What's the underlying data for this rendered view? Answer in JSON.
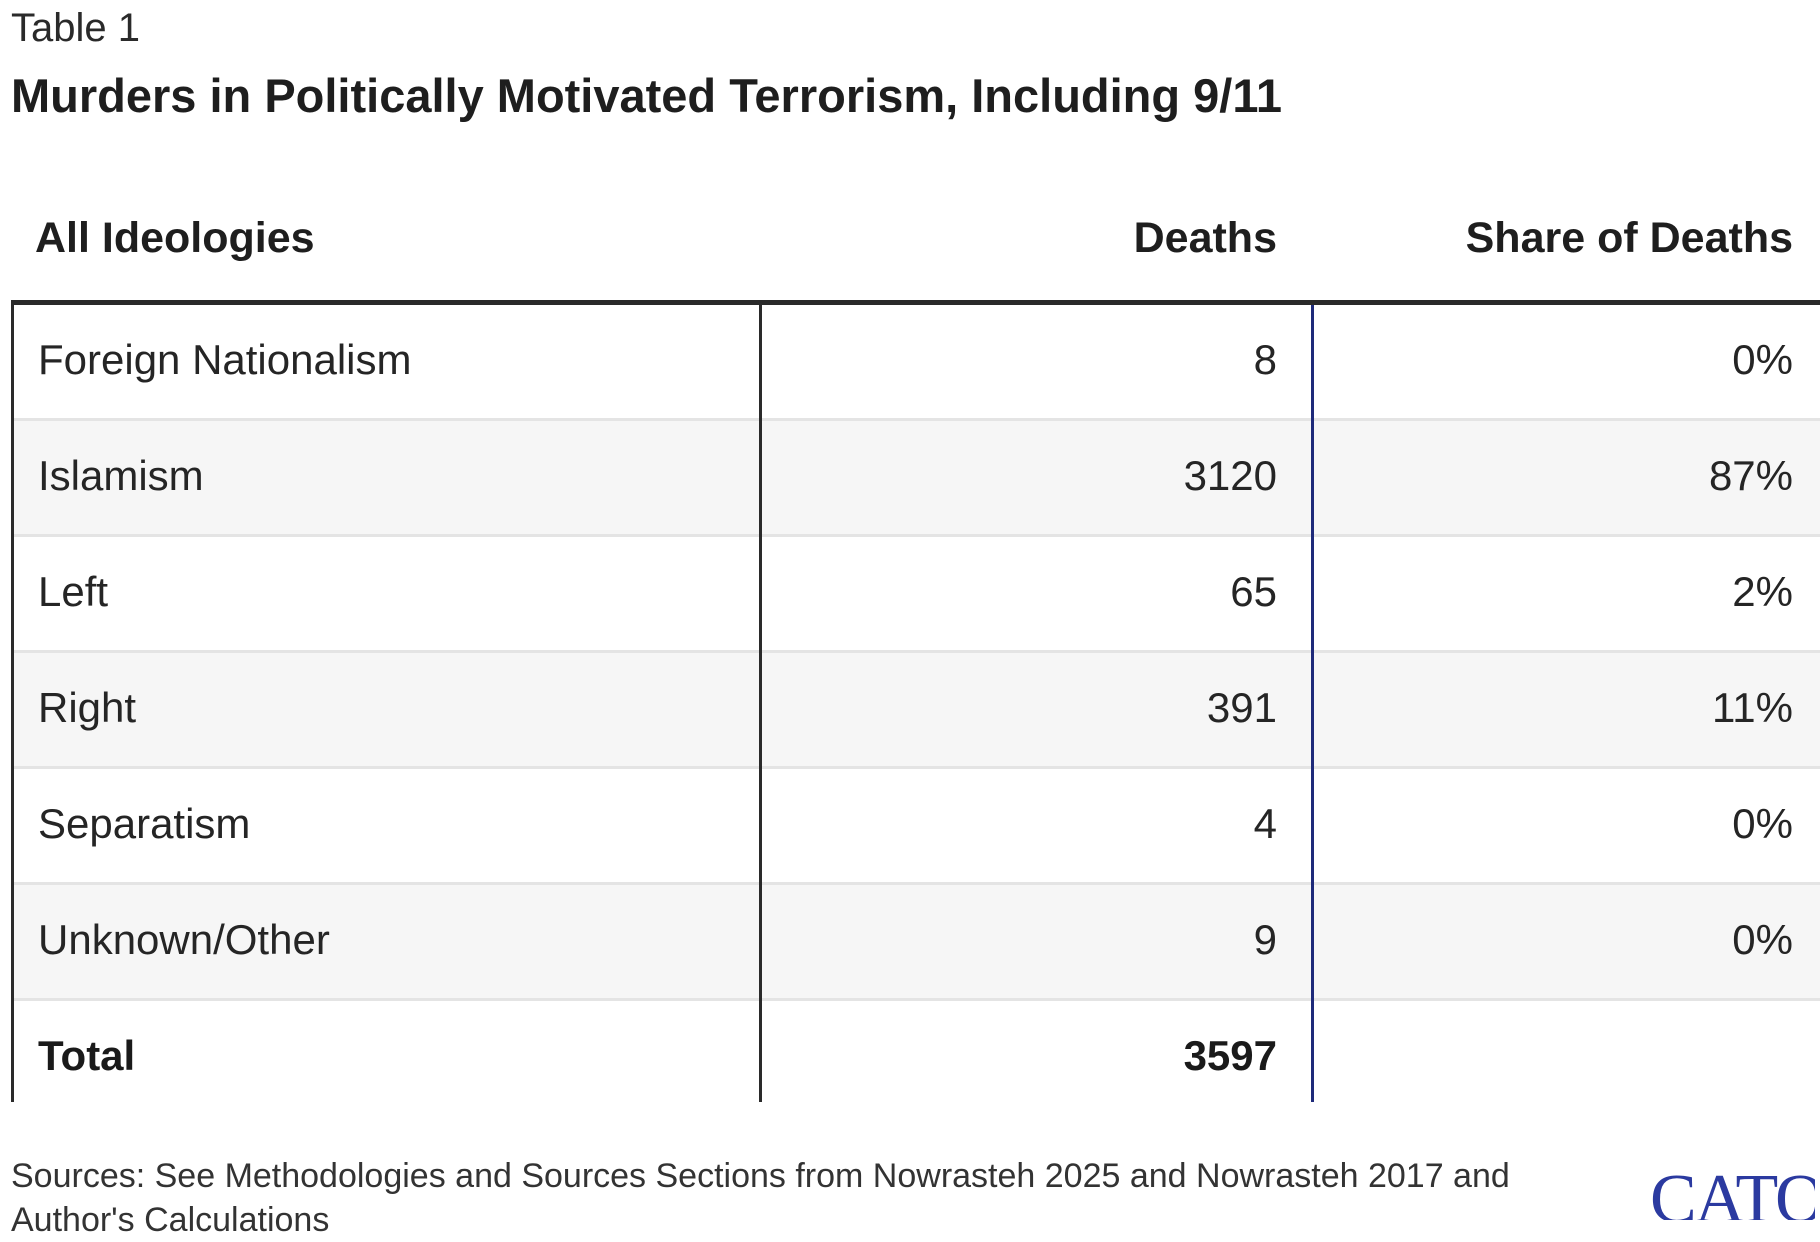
{
  "table_label": "Table 1",
  "title": "Murders in Politically Motivated Terrorism, Including 9/11",
  "columns": {
    "ideology": "All Ideologies",
    "deaths": "Deaths",
    "share": "Share of Deaths"
  },
  "rows": [
    {
      "name": "Foreign Nationalism",
      "deaths": "8",
      "share": "0%"
    },
    {
      "name": "Islamism",
      "deaths": "3120",
      "share": "87%"
    },
    {
      "name": "Left",
      "deaths": "65",
      "share": "2%"
    },
    {
      "name": "Right",
      "deaths": "391",
      "share": "11%"
    },
    {
      "name": "Separatism",
      "deaths": "4",
      "share": "0%"
    },
    {
      "name": "Unknown/Other",
      "deaths": "9",
      "share": "0%"
    }
  ],
  "total": {
    "name": "Total",
    "deaths": "3597",
    "share": ""
  },
  "footer": "Sources: See Methodologies and Sources Sections from Nowrasteh 2025 and Nowrasteh 2017 and Author's Calculations",
  "logo": {
    "text": "CATO",
    "color": "#2b3aa0"
  }
}
